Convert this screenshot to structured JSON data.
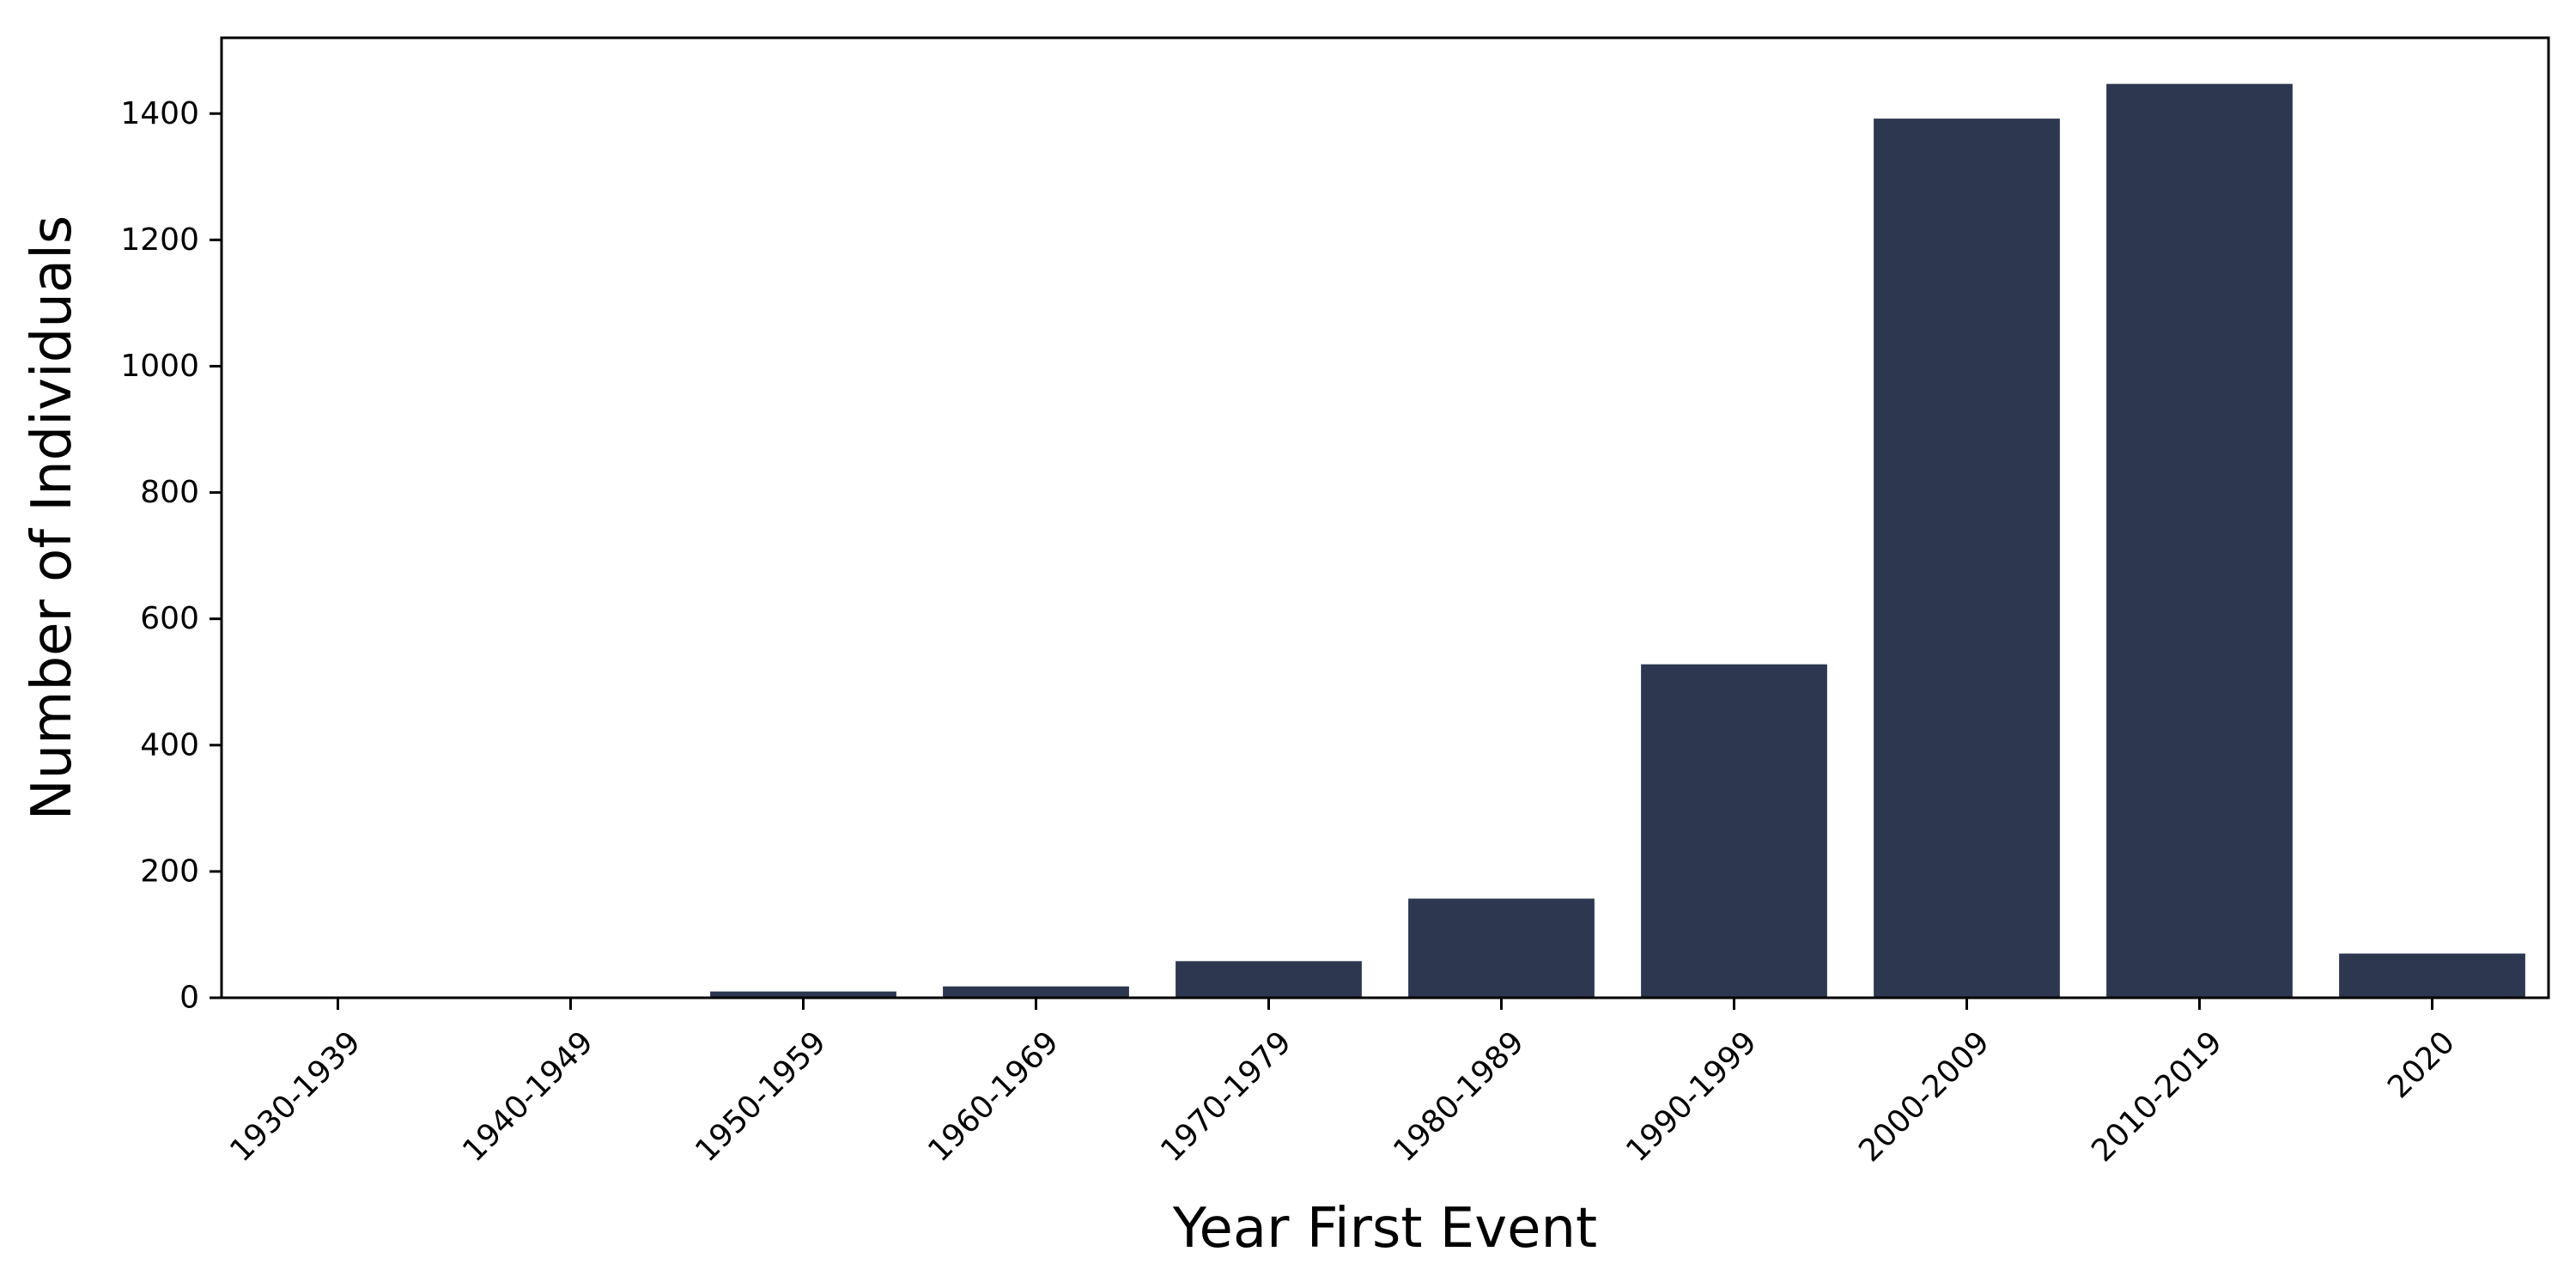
{
  "chart_data": {
    "type": "bar",
    "title": "",
    "xlabel": "Year First Event",
    "ylabel": "Number of Individuals",
    "categories": [
      "1930-1939",
      "1940-1949",
      "1950-1959",
      "1960-1969",
      "1970-1979",
      "1980-1989",
      "1990-1999",
      "2000-2009",
      "2010-2019",
      "2020"
    ],
    "values": [
      1,
      1,
      10,
      18,
      58,
      157,
      528,
      1392,
      1447,
      70
    ],
    "ylim": [
      0,
      1520
    ],
    "yticks": [
      0,
      200,
      400,
      600,
      800,
      1000,
      1200,
      1400
    ],
    "grid": false,
    "legend": "none",
    "bar_color": "#2d3850"
  }
}
